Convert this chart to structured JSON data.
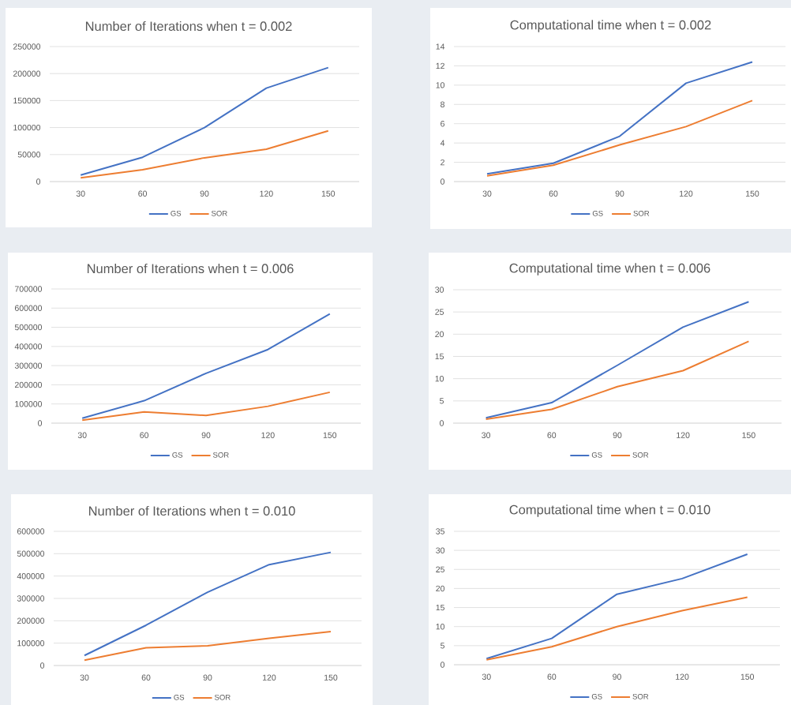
{
  "chart_data": [
    {
      "type": "line",
      "title": "Number of Iterations when t = 0.002",
      "categories": [
        "30",
        "60",
        "90",
        "120",
        "150"
      ],
      "series": [
        {
          "name": "GS",
          "color": "#4472c4",
          "values": [
            12000,
            45000,
            100000,
            173000,
            211000
          ]
        },
        {
          "name": "SOR",
          "color": "#ed7d31",
          "values": [
            7000,
            22000,
            44000,
            60000,
            94000
          ]
        }
      ],
      "ylim": [
        0,
        250000
      ],
      "yticks": [
        0,
        50000,
        100000,
        150000,
        200000,
        250000
      ],
      "grid": "y",
      "legend": "bottom"
    },
    {
      "type": "line",
      "title": "Computational time when t = 0.002",
      "categories": [
        "30",
        "60",
        "90",
        "120",
        "150"
      ],
      "series": [
        {
          "name": "GS",
          "color": "#4472c4",
          "values": [
            0.8,
            1.9,
            4.7,
            10.2,
            12.4
          ]
        },
        {
          "name": "SOR",
          "color": "#ed7d31",
          "values": [
            0.6,
            1.7,
            3.8,
            5.7,
            8.4
          ]
        }
      ],
      "ylim": [
        0,
        14
      ],
      "yticks": [
        0,
        2,
        4,
        6,
        8,
        10,
        12,
        14
      ],
      "grid": "y",
      "legend": "bottom"
    },
    {
      "type": "line",
      "title": "Number of Iterations when t = 0.006",
      "categories": [
        "30",
        "60",
        "90",
        "120",
        "150"
      ],
      "series": [
        {
          "name": "GS",
          "color": "#4472c4",
          "values": [
            26000,
            117000,
            260000,
            384000,
            570000
          ]
        },
        {
          "name": "SOR",
          "color": "#ed7d31",
          "values": [
            15000,
            59000,
            40000,
            88000,
            161000
          ]
        }
      ],
      "ylim": [
        0,
        700000
      ],
      "yticks": [
        0,
        100000,
        200000,
        300000,
        400000,
        500000,
        600000,
        700000
      ],
      "grid": "y",
      "legend": "bottom"
    },
    {
      "type": "line",
      "title": "Computational time when t = 0.006",
      "categories": [
        "30",
        "60",
        "90",
        "120",
        "150"
      ],
      "series": [
        {
          "name": "GS",
          "color": "#4472c4",
          "values": [
            1.2,
            4.6,
            13.0,
            21.6,
            27.3
          ]
        },
        {
          "name": "SOR",
          "color": "#ed7d31",
          "values": [
            0.9,
            3.1,
            8.2,
            11.8,
            18.4
          ]
        }
      ],
      "ylim": [
        0,
        30
      ],
      "yticks": [
        0,
        5,
        10,
        15,
        20,
        25,
        30
      ],
      "grid": "y",
      "legend": "bottom"
    },
    {
      "type": "line",
      "title": "Number of Iterations when t = 0.010",
      "categories": [
        "30",
        "60",
        "90",
        "120",
        "150"
      ],
      "series": [
        {
          "name": "GS",
          "color": "#4472c4",
          "values": [
            45000,
            180000,
            328000,
            451000,
            506000
          ]
        },
        {
          "name": "SOR",
          "color": "#ed7d31",
          "values": [
            24000,
            79000,
            88000,
            122000,
            152000
          ]
        }
      ],
      "ylim": [
        0,
        600000
      ],
      "yticks": [
        0,
        100000,
        200000,
        300000,
        400000,
        500000,
        600000
      ],
      "grid": "y",
      "legend": "bottom"
    },
    {
      "type": "line",
      "title": "Computational time when t = 0.010",
      "categories": [
        "30",
        "60",
        "90",
        "120",
        "150"
      ],
      "series": [
        {
          "name": "GS",
          "color": "#4472c4",
          "values": [
            1.6,
            6.9,
            18.5,
            22.6,
            29.0
          ]
        },
        {
          "name": "SOR",
          "color": "#ed7d31",
          "values": [
            1.3,
            4.7,
            10.0,
            14.2,
            17.7
          ]
        }
      ],
      "ylim": [
        0,
        35
      ],
      "yticks": [
        0,
        5,
        10,
        15,
        20,
        25,
        30,
        35
      ],
      "grid": "y",
      "legend": "bottom"
    }
  ]
}
